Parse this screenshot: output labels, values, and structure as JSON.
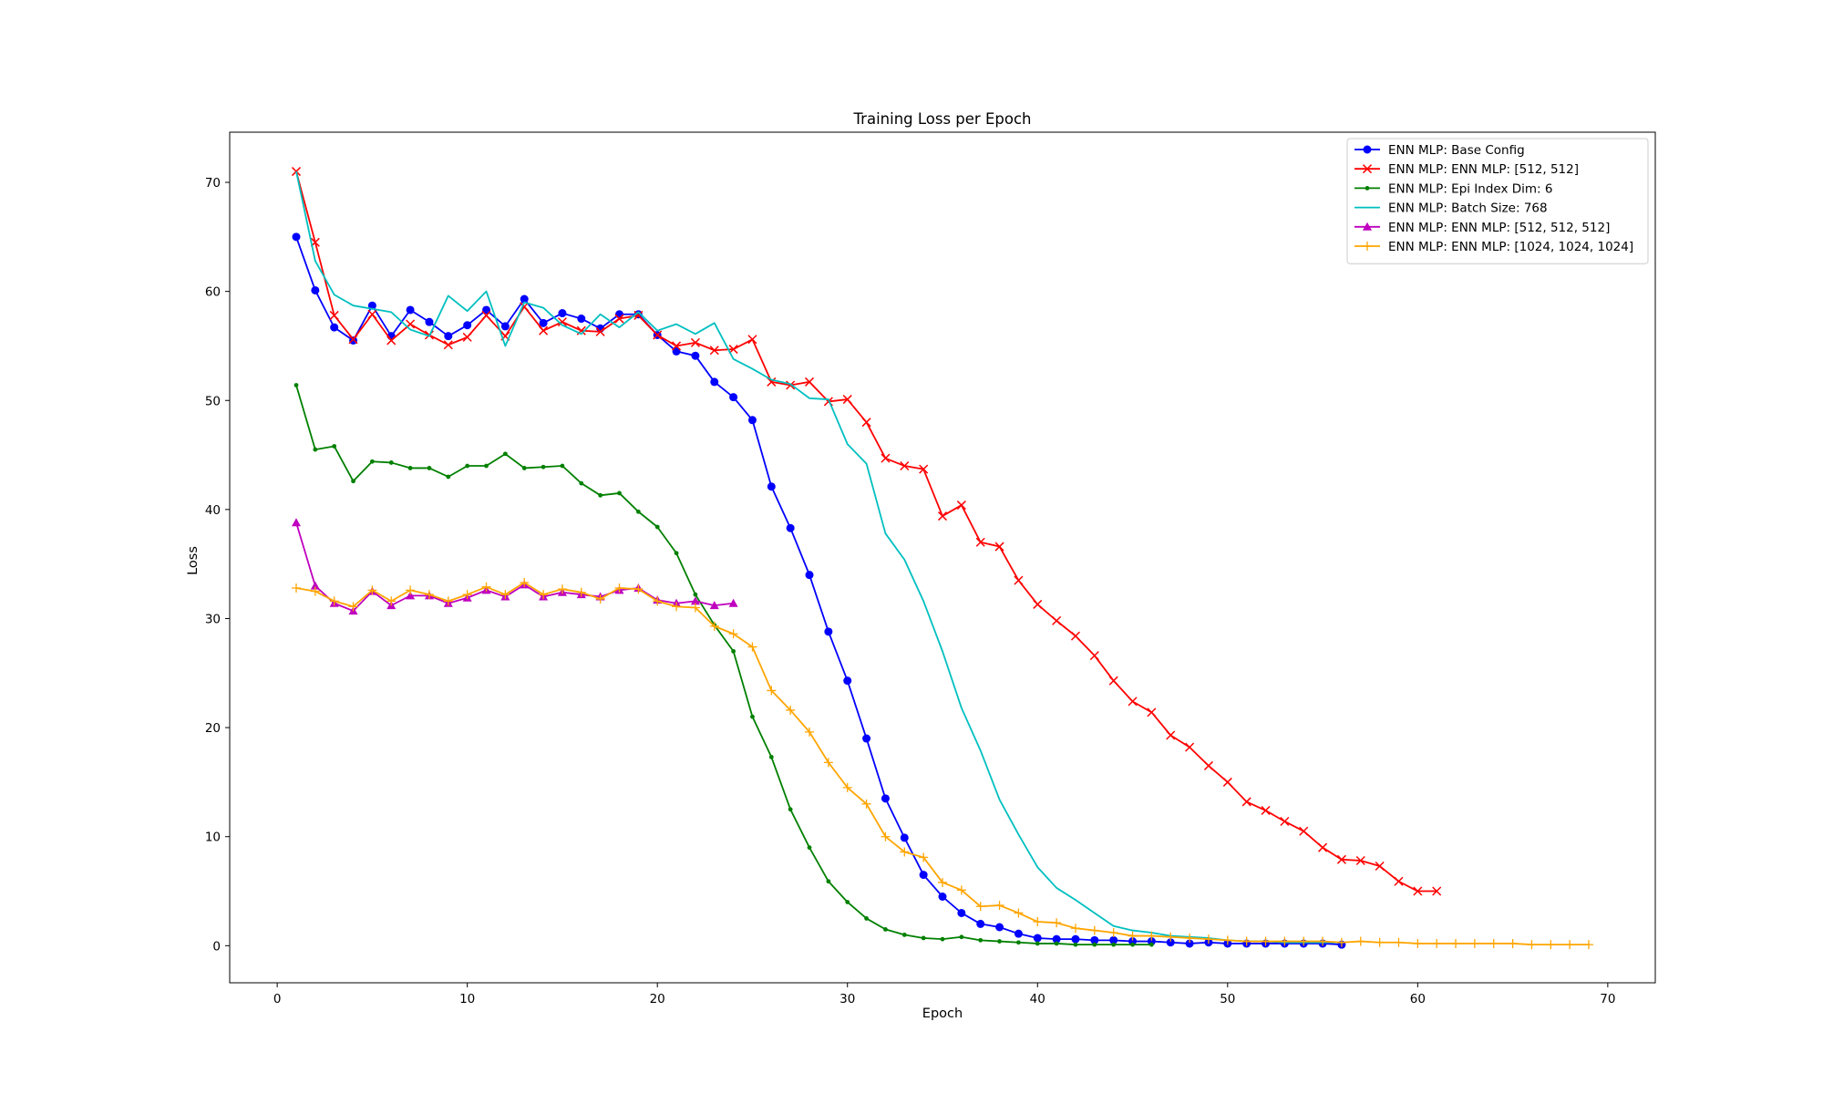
{
  "chart_data": {
    "type": "line",
    "title": "Training Loss per Epoch",
    "xlabel": "Epoch",
    "ylabel": "Loss",
    "xlim": [
      -2.5,
      72.5
    ],
    "ylim": [
      -3.4,
      74.6
    ],
    "xticks": [
      0,
      10,
      20,
      30,
      40,
      50,
      60,
      70
    ],
    "yticks": [
      0,
      10,
      20,
      30,
      40,
      50,
      60,
      70
    ],
    "grid": false,
    "legend_position": "top-right",
    "series": [
      {
        "name": "ENN MLP: Base Config",
        "color": "#0000ff",
        "marker": "circle",
        "x": [
          1,
          2,
          3,
          4,
          5,
          6,
          7,
          8,
          9,
          10,
          11,
          12,
          13,
          14,
          15,
          16,
          17,
          18,
          19,
          20,
          21,
          22,
          23,
          24,
          25,
          26,
          27,
          28,
          29,
          30,
          31,
          32,
          33,
          34,
          35,
          36,
          37,
          38,
          39,
          40,
          41,
          42,
          43,
          44,
          45,
          46,
          47,
          48,
          49,
          50,
          51,
          52,
          53,
          54,
          55,
          56
        ],
        "y": [
          65.0,
          60.1,
          56.7,
          55.5,
          58.7,
          55.9,
          58.3,
          57.2,
          55.9,
          56.9,
          58.3,
          56.8,
          59.3,
          57.1,
          58.0,
          57.5,
          56.6,
          57.9,
          57.9,
          56.0,
          54.5,
          54.1,
          51.7,
          50.3,
          48.2,
          42.1,
          38.3,
          34.0,
          28.8,
          24.3,
          19.0,
          13.5,
          9.9,
          6.5,
          4.5,
          3.0,
          2.0,
          1.7,
          1.1,
          0.7,
          0.6,
          0.6,
          0.5,
          0.5,
          0.4,
          0.4,
          0.3,
          0.2,
          0.3,
          0.2,
          0.2,
          0.2,
          0.2,
          0.2,
          0.2,
          0.1
        ]
      },
      {
        "name": "ENN MLP: ENN MLP: [512, 512]",
        "color": "#ff0000",
        "marker": "x",
        "x": [
          1,
          2,
          3,
          4,
          5,
          6,
          7,
          8,
          9,
          10,
          11,
          12,
          13,
          14,
          15,
          16,
          17,
          18,
          19,
          20,
          21,
          22,
          23,
          24,
          25,
          26,
          27,
          28,
          29,
          30,
          31,
          32,
          33,
          34,
          35,
          36,
          37,
          38,
          39,
          40,
          41,
          42,
          43,
          44,
          45,
          46,
          47,
          48,
          49,
          50,
          51,
          52,
          53,
          54,
          55,
          56,
          57,
          58,
          59,
          60,
          61
        ],
        "y": [
          71.0,
          64.5,
          57.8,
          55.6,
          57.9,
          55.5,
          57.0,
          56.0,
          55.1,
          55.8,
          57.8,
          55.9,
          58.6,
          56.4,
          57.2,
          56.4,
          56.3,
          57.5,
          57.8,
          56.0,
          55.0,
          55.3,
          54.6,
          54.7,
          55.6,
          51.7,
          51.4,
          51.7,
          49.9,
          50.1,
          48.0,
          44.7,
          44.0,
          43.7,
          39.4,
          40.4,
          37.0,
          36.6,
          33.5,
          31.3,
          29.8,
          28.4,
          26.6,
          24.3,
          22.4,
          21.4,
          19.3,
          18.2,
          16.5,
          15.0,
          13.2,
          12.4,
          11.4,
          10.5,
          9.0,
          7.9,
          7.8,
          7.3,
          5.9,
          5.0,
          5.0
        ]
      },
      {
        "name": "ENN MLP: Epi Index Dim: 6",
        "color": "#008000",
        "marker": "dot",
        "x": [
          1,
          2,
          3,
          4,
          5,
          6,
          7,
          8,
          9,
          10,
          11,
          12,
          13,
          14,
          15,
          16,
          17,
          18,
          19,
          20,
          21,
          22,
          23,
          24,
          25,
          26,
          27,
          28,
          29,
          30,
          31,
          32,
          33,
          34,
          35,
          36,
          37,
          38,
          39,
          40,
          41,
          42,
          43,
          44,
          45,
          46
        ],
        "y": [
          51.4,
          45.5,
          45.8,
          42.6,
          44.4,
          44.3,
          43.8,
          43.8,
          43.0,
          44.0,
          44.0,
          45.1,
          43.8,
          43.9,
          44.0,
          42.4,
          41.3,
          41.5,
          39.8,
          38.4,
          36.0,
          32.2,
          29.4,
          27.0,
          21.0,
          17.3,
          12.5,
          9.0,
          5.9,
          4.0,
          2.5,
          1.5,
          1.0,
          0.7,
          0.6,
          0.8,
          0.5,
          0.4,
          0.3,
          0.2,
          0.2,
          0.1,
          0.1,
          0.1,
          0.1,
          0.1
        ]
      },
      {
        "name": "ENN MLP: Batch Size: 768",
        "color": "#00bfbf",
        "marker": "none",
        "x": [
          1,
          2,
          3,
          4,
          5,
          6,
          7,
          8,
          9,
          10,
          11,
          12,
          13,
          14,
          15,
          16,
          17,
          18,
          19,
          20,
          21,
          22,
          23,
          24,
          25,
          26,
          27,
          28,
          29,
          30,
          31,
          32,
          33,
          34,
          35,
          36,
          37,
          38,
          39,
          40,
          41,
          42,
          43,
          44,
          45,
          46,
          47,
          48,
          49,
          50,
          51,
          52,
          53,
          54,
          55,
          56
        ],
        "y": [
          71.0,
          62.8,
          59.7,
          58.7,
          58.4,
          58.1,
          56.5,
          55.9,
          59.6,
          58.2,
          60.0,
          55.0,
          59.0,
          58.5,
          56.9,
          56.1,
          57.9,
          56.7,
          58.1,
          56.4,
          57.0,
          56.1,
          57.1,
          53.8,
          52.9,
          51.9,
          51.5,
          50.2,
          50.1,
          46.0,
          44.2,
          37.8,
          35.4,
          31.6,
          27.0,
          21.8,
          17.9,
          13.4,
          10.2,
          7.2,
          5.3,
          4.2,
          3.0,
          1.8,
          1.4,
          1.2,
          0.9,
          0.8,
          0.7,
          0.5,
          0.4,
          0.4,
          0.3,
          0.3,
          0.3,
          0.3
        ]
      },
      {
        "name": "ENN MLP: ENN MLP: [512, 512, 512]",
        "color": "#bf00bf",
        "marker": "triangle",
        "x": [
          1,
          2,
          3,
          4,
          5,
          6,
          7,
          8,
          9,
          10,
          11,
          12,
          13,
          14,
          15,
          16,
          17,
          18,
          19,
          20,
          21,
          22,
          23,
          24
        ],
        "y": [
          38.8,
          33.0,
          31.4,
          30.7,
          32.5,
          31.2,
          32.1,
          32.1,
          31.4,
          31.9,
          32.6,
          32.0,
          33.1,
          32.0,
          32.4,
          32.2,
          32.0,
          32.6,
          32.8,
          31.7,
          31.4,
          31.6,
          31.2,
          31.4
        ]
      },
      {
        "name": "ENN MLP: ENN MLP: [1024, 1024, 1024]",
        "color": "#ffa500",
        "marker": "plus",
        "x": [
          1,
          2,
          3,
          4,
          5,
          6,
          7,
          8,
          9,
          10,
          11,
          12,
          13,
          14,
          15,
          16,
          17,
          18,
          19,
          20,
          21,
          22,
          23,
          24,
          25,
          26,
          27,
          28,
          29,
          30,
          31,
          32,
          33,
          34,
          35,
          36,
          37,
          38,
          39,
          40,
          41,
          42,
          43,
          44,
          45,
          46,
          47,
          48,
          49,
          50,
          51,
          52,
          53,
          54,
          55,
          56,
          57,
          58,
          59,
          60,
          61,
          62,
          63,
          64,
          65,
          66,
          67,
          68,
          69
        ],
        "y": [
          32.8,
          32.5,
          31.6,
          31.1,
          32.6,
          31.6,
          32.6,
          32.2,
          31.6,
          32.2,
          32.9,
          32.2,
          33.3,
          32.2,
          32.7,
          32.4,
          31.8,
          32.8,
          32.7,
          31.6,
          31.1,
          31.0,
          29.3,
          28.6,
          27.4,
          23.4,
          21.6,
          19.6,
          16.8,
          14.5,
          13.0,
          10.0,
          8.6,
          8.1,
          5.8,
          5.1,
          3.6,
          3.7,
          3.0,
          2.2,
          2.1,
          1.6,
          1.4,
          1.2,
          0.9,
          0.9,
          0.8,
          0.7,
          0.6,
          0.5,
          0.4,
          0.4,
          0.4,
          0.4,
          0.4,
          0.3,
          0.4,
          0.3,
          0.3,
          0.2,
          0.2,
          0.2,
          0.2,
          0.2,
          0.2,
          0.1,
          0.1,
          0.1,
          0.1
        ]
      }
    ]
  }
}
